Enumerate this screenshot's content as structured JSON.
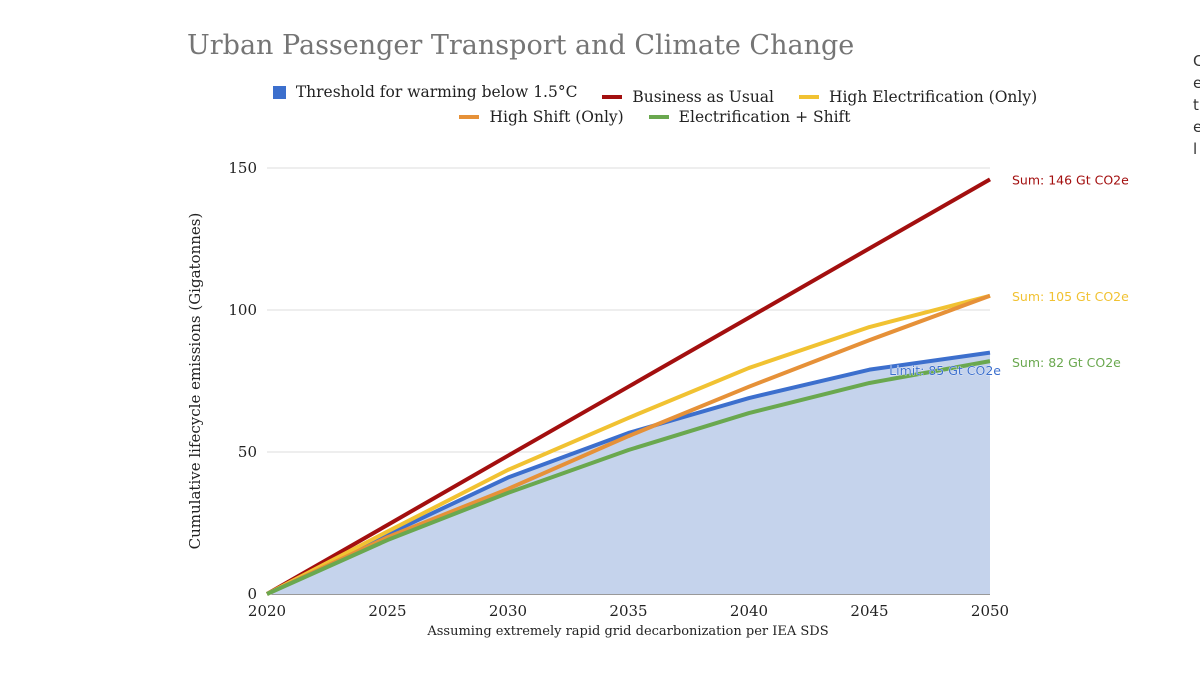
{
  "chart_data": {
    "type": "area",
    "title": "Urban Passenger Transport and Climate Change",
    "xlabel": "Assuming extremely rapid grid decarbonization per IEA SDS",
    "ylabel": "Cumulative lifecycle emissions (Gigatonnes)",
    "x": [
      2020,
      2025,
      2030,
      2035,
      2040,
      2045,
      2050
    ],
    "xlim": [
      2020,
      2050
    ],
    "ylim": [
      0,
      150
    ],
    "xticks": [
      "2020",
      "2025",
      "2030",
      "2035",
      "2040",
      "2045",
      "2050"
    ],
    "yticks": [
      "0",
      "50",
      "100",
      "150"
    ],
    "grid": true,
    "legend_position": "top",
    "series": [
      {
        "name": "Threshold for warming below 1.5°C",
        "color": "#3c6fcd",
        "fill": "#c5d3ec",
        "style": "area",
        "values": [
          0,
          21,
          41,
          56.7,
          69,
          79,
          85
        ],
        "label": "Limit: 85 Gt CO2e"
      },
      {
        "name": "Business as Usual",
        "color": "#a30f0f",
        "style": "line",
        "values": [
          0,
          24.3,
          48.7,
          73,
          97.3,
          121.7,
          146
        ],
        "label": "Sum: 146 Gt CO2e"
      },
      {
        "name": "High Electrification (Only)",
        "color": "#f1c232",
        "style": "line",
        "values": [
          0,
          22,
          43.7,
          62,
          79.6,
          94,
          105
        ],
        "label": "Sum: 105 Gt CO2e"
      },
      {
        "name": "High Shift (Only)",
        "color": "#e69138",
        "style": "line",
        "values": [
          0,
          20,
          37,
          55.6,
          73,
          89.4,
          105
        ],
        "label": "Sum: 105 Gt CO2e"
      },
      {
        "name": "Electrification + Shift",
        "color": "#6aa84f",
        "style": "line",
        "values": [
          0,
          19,
          35.6,
          50.7,
          63.7,
          74.3,
          82
        ],
        "label": "Sum: 82 Gt CO2e"
      }
    ]
  },
  "side_text": [
    "C",
    "e",
    "t",
    "e",
    "l"
  ]
}
